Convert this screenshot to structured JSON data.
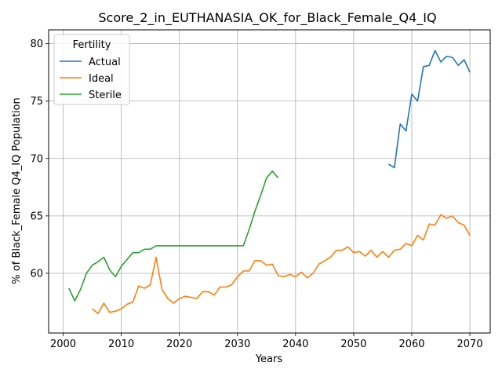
{
  "chart_data": {
    "type": "line",
    "title": "Score_2_in_EUTHANASIA_OK_for_Black_Female_Q4_IQ",
    "xlabel": "Years",
    "ylabel": "% of Black_Female Q4_IQ Population",
    "xlim": [
      1997.5,
      2073.5
    ],
    "ylim": [
      54.8,
      81.2
    ],
    "xticks": [
      2000,
      2010,
      2020,
      2030,
      2040,
      2050,
      2060,
      2070
    ],
    "yticks": [
      60,
      65,
      70,
      75,
      80
    ],
    "grid": true,
    "legend": {
      "title": "Fertility",
      "placement": "top-left"
    },
    "series": [
      {
        "name": "Actual",
        "color": "#1f77b4",
        "x": [
          2056,
          2057,
          2058,
          2059,
          2060,
          2061,
          2062,
          2063,
          2064,
          2065,
          2066,
          2067,
          2068,
          2069,
          2070
        ],
        "values": [
          69.5,
          69.2,
          73.0,
          72.4,
          75.6,
          75.0,
          78.0,
          78.1,
          79.4,
          78.4,
          78.9,
          78.8,
          78.1,
          78.6,
          77.5
        ]
      },
      {
        "name": "Ideal",
        "color": "#ff7f0e",
        "x": [
          2005,
          2006,
          2007,
          2008,
          2009,
          2010,
          2011,
          2012,
          2013,
          2014,
          2015,
          2016,
          2017,
          2018,
          2019,
          2020,
          2021,
          2022,
          2023,
          2024,
          2025,
          2026,
          2027,
          2028,
          2029,
          2030,
          2031,
          2032,
          2033,
          2034,
          2035,
          2036,
          2037,
          2038,
          2039,
          2040,
          2041,
          2042,
          2043,
          2044,
          2045,
          2046,
          2047,
          2048,
          2049,
          2050,
          2051,
          2052,
          2053,
          2054,
          2055,
          2056,
          2057,
          2058,
          2059,
          2060,
          2061,
          2062,
          2063,
          2064,
          2065,
          2066,
          2067,
          2068,
          2069,
          2070
        ],
        "values": [
          56.9,
          56.5,
          57.4,
          56.6,
          56.7,
          56.9,
          57.3,
          57.5,
          58.9,
          58.7,
          59.0,
          61.4,
          58.6,
          57.8,
          57.4,
          57.8,
          58.0,
          57.9,
          57.8,
          58.4,
          58.4,
          58.1,
          58.8,
          58.8,
          59.0,
          59.7,
          60.2,
          60.2,
          61.1,
          61.1,
          60.7,
          60.8,
          59.8,
          59.7,
          59.9,
          59.7,
          60.1,
          59.6,
          60.0,
          60.8,
          61.1,
          61.4,
          62.0,
          62.0,
          62.3,
          61.8,
          61.9,
          61.5,
          62.0,
          61.4,
          61.9,
          61.4,
          62.0,
          62.1,
          62.6,
          62.4,
          63.3,
          62.9,
          64.3,
          64.2,
          65.1,
          64.8,
          65.0,
          64.4,
          64.2,
          63.3
        ]
      },
      {
        "name": "Sterile",
        "color": "#2ca02c",
        "x": [
          2001,
          2002,
          2003,
          2004,
          2005,
          2006,
          2007,
          2008,
          2009,
          2010,
          2011,
          2012,
          2013,
          2014,
          2015,
          2016,
          2017,
          2018,
          2019,
          2020,
          2021,
          2022,
          2023,
          2024,
          2025,
          2026,
          2027,
          2028,
          2029,
          2030,
          2031,
          2032,
          2033,
          2034,
          2035,
          2036,
          2037
        ],
        "values": [
          58.7,
          57.6,
          58.6,
          60.0,
          60.7,
          61.0,
          61.4,
          60.3,
          59.7,
          60.6,
          61.2,
          61.8,
          61.8,
          62.1,
          62.1,
          62.4,
          62.4,
          62.4,
          62.4,
          62.4,
          62.4,
          62.4,
          62.4,
          62.4,
          62.4,
          62.4,
          62.4,
          62.4,
          62.4,
          62.4,
          62.4,
          63.8,
          65.4,
          66.8,
          68.3,
          68.9,
          68.3
        ]
      }
    ]
  }
}
